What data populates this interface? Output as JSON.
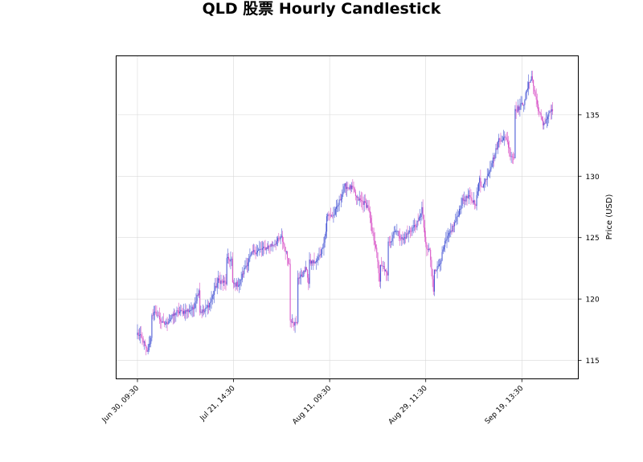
{
  "chart_data": {
    "type": "candlestick",
    "title": "QLD 股票 Hourly Candlestick",
    "xlabel": "",
    "ylabel": "Price (USD)",
    "ylim": [
      113.5,
      139.8
    ],
    "y_ticks": [
      115,
      120,
      125,
      130,
      135
    ],
    "y_axis_side": "right",
    "grid": true,
    "x_ticks": [
      "Jun 30, 09:30",
      "Jul 21, 14:30",
      "Aug 11, 09:30",
      "Aug 29, 11:30",
      "Sep 19, 13:30"
    ],
    "x_tick_positions": [
      0,
      100,
      200,
      300,
      400
    ],
    "up_color": "#4d5cd6",
    "down_color": "#d957c8",
    "anchors": [
      [
        0,
        117.2
      ],
      [
        6,
        116.6
      ],
      [
        10,
        115.6
      ],
      [
        14,
        116.8
      ],
      [
        20,
        118.8
      ],
      [
        26,
        118.0
      ],
      [
        30,
        118.0
      ],
      [
        40,
        118.9
      ],
      [
        50,
        119.0
      ],
      [
        58,
        119.2
      ],
      [
        64,
        120.8
      ],
      [
        70,
        119.0
      ],
      [
        76,
        119.8
      ],
      [
        84,
        121.5
      ],
      [
        92,
        121.3
      ],
      [
        98,
        123.2
      ],
      [
        106,
        121.2
      ],
      [
        112,
        122.6
      ],
      [
        120,
        123.8
      ],
      [
        132,
        124.1
      ],
      [
        142,
        124.5
      ],
      [
        150,
        125.0
      ],
      [
        154,
        124.0
      ],
      [
        158,
        122.8
      ],
      [
        162,
        118.3
      ],
      [
        166,
        118.0
      ],
      [
        170,
        121.8
      ],
      [
        176,
        122.5
      ],
      [
        178,
        121.2
      ],
      [
        186,
        123.0
      ],
      [
        192,
        124.0
      ],
      [
        196,
        125.5
      ],
      [
        204,
        126.8
      ],
      [
        208,
        127.5
      ],
      [
        216,
        129.2
      ],
      [
        224,
        129.0
      ],
      [
        228,
        128.2
      ],
      [
        236,
        127.8
      ],
      [
        240,
        127.5
      ],
      [
        244,
        125.5
      ],
      [
        248,
        124.3
      ],
      [
        252,
        121.5
      ],
      [
        256,
        122.6
      ],
      [
        260,
        121.8
      ],
      [
        264,
        124.8
      ],
      [
        268,
        125.7
      ],
      [
        276,
        124.8
      ],
      [
        284,
        125.6
      ],
      [
        292,
        126.2
      ],
      [
        296,
        127.4
      ],
      [
        300,
        124.3
      ],
      [
        304,
        124.0
      ],
      [
        308,
        120.7
      ],
      [
        312,
        122.5
      ],
      [
        316,
        123.3
      ],
      [
        320,
        124.5
      ],
      [
        326,
        125.5
      ],
      [
        332,
        126.5
      ],
      [
        338,
        128.0
      ],
      [
        344,
        128.3
      ],
      [
        352,
        127.8
      ],
      [
        356,
        129.8
      ],
      [
        360,
        129.3
      ],
      [
        366,
        130.5
      ],
      [
        372,
        131.8
      ],
      [
        376,
        133.0
      ],
      [
        384,
        133.1
      ],
      [
        388,
        131.8
      ],
      [
        392,
        131.5
      ],
      [
        396,
        135.5
      ],
      [
        402,
        136.0
      ],
      [
        406,
        137.2
      ],
      [
        410,
        138.2
      ],
      [
        414,
        136.5
      ],
      [
        418,
        135.2
      ],
      [
        422,
        134.2
      ],
      [
        428,
        135.0
      ],
      [
        432,
        135.3
      ]
    ],
    "gaps": [
      14,
      26,
      64,
      92,
      98,
      158,
      162,
      166,
      178,
      196,
      252,
      260,
      300,
      308,
      356,
      392,
      428
    ]
  }
}
